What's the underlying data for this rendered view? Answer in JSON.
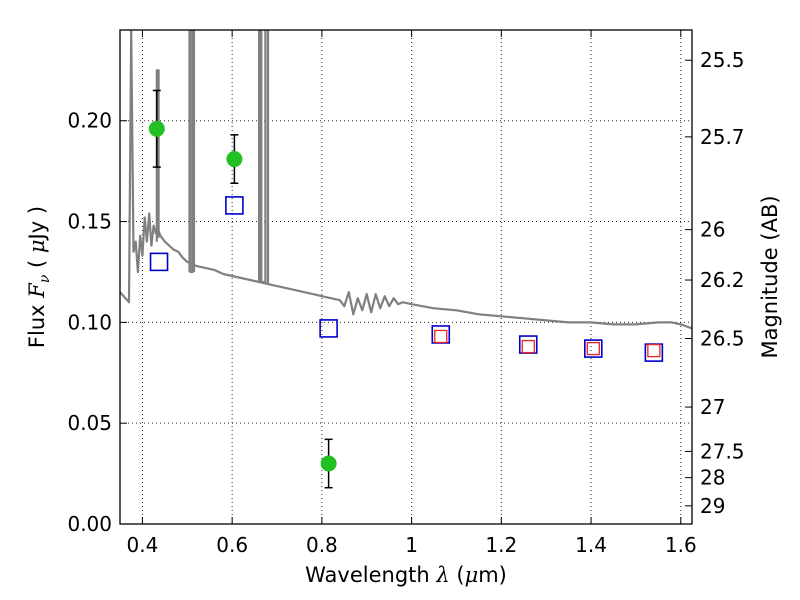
{
  "chart_data": {
    "type": "scatter",
    "title": "",
    "xlabel_parts": [
      "Wavelength  ",
      "λ",
      " (",
      "μ",
      "m)"
    ],
    "ylabel_parts": [
      "Flux  ",
      "F",
      "ν",
      "  ( ",
      "μ",
      "Jy )"
    ],
    "y2label": "Magnitude (AB)",
    "xlim": [
      0.35,
      1.625
    ],
    "ylim": [
      0.0,
      0.245
    ],
    "x_ticks": [
      0.4,
      0.6,
      0.8,
      1.0,
      1.2,
      1.4,
      1.6
    ],
    "x_tick_labels": [
      "0.4",
      "0.6",
      "0.8",
      "1",
      "1.2",
      "1.4",
      "1.6"
    ],
    "y_ticks": [
      0.0,
      0.05,
      0.1,
      0.15,
      0.2
    ],
    "y_tick_labels": [
      "0.00",
      "0.05",
      "0.10",
      "0.15",
      "0.20"
    ],
    "y2_ticks": [
      {
        "label": "25.5",
        "flux": 0.23
      },
      {
        "label": "25.7",
        "flux": 0.192
      },
      {
        "label": "26",
        "flux": 0.146
      },
      {
        "label": "26.2",
        "flux": 0.121
      },
      {
        "label": "26.5",
        "flux": 0.092
      },
      {
        "label": "27",
        "flux": 0.058
      },
      {
        "label": "27.5",
        "flux": 0.036
      },
      {
        "label": "28",
        "flux": 0.023
      },
      {
        "label": "29",
        "flux": 0.009
      }
    ],
    "grid": true,
    "series": [
      {
        "type": "line",
        "color": "#808080",
        "x": [
          0.35,
          0.37,
          0.375,
          0.38,
          0.385,
          0.39,
          0.395,
          0.4,
          0.405,
          0.41,
          0.415,
          0.42,
          0.425,
          0.43,
          0.435,
          0.44,
          0.45,
          0.46,
          0.47,
          0.48,
          0.49,
          0.5,
          0.52,
          0.54,
          0.56,
          0.58,
          0.6,
          0.62,
          0.64,
          0.66,
          0.68,
          0.7,
          0.72,
          0.74,
          0.76,
          0.78,
          0.8,
          0.82,
          0.84,
          0.85,
          0.86,
          0.87,
          0.88,
          0.89,
          0.9,
          0.91,
          0.92,
          0.93,
          0.94,
          0.95,
          0.96,
          0.97,
          0.98,
          1.0,
          1.05,
          1.1,
          1.15,
          1.2,
          1.25,
          1.3,
          1.35,
          1.4,
          1.45,
          1.5,
          1.55,
          1.58,
          1.6,
          1.625
        ],
        "y": [
          0.115,
          0.11,
          0.245,
          0.135,
          0.14,
          0.125,
          0.143,
          0.133,
          0.152,
          0.14,
          0.154,
          0.138,
          0.148,
          0.144,
          0.146,
          0.143,
          0.14,
          0.138,
          0.136,
          0.135,
          0.132,
          0.13,
          0.128,
          0.127,
          0.126,
          0.124,
          0.123,
          0.122,
          0.121,
          0.12,
          0.119,
          0.118,
          0.117,
          0.116,
          0.115,
          0.114,
          0.113,
          0.112,
          0.111,
          0.108,
          0.115,
          0.104,
          0.112,
          0.106,
          0.114,
          0.105,
          0.114,
          0.107,
          0.113,
          0.108,
          0.112,
          0.109,
          0.11,
          0.109,
          0.107,
          0.106,
          0.104,
          0.103,
          0.102,
          0.101,
          0.1,
          0.1,
          0.099,
          0.099,
          0.1,
          0.1,
          0.099,
          0.097
        ]
      },
      {
        "type": "line",
        "color": "#808080",
        "x": [
          0.505,
          0.505,
          0.507,
          0.507,
          0.512,
          0.512,
          0.515,
          0.515
        ],
        "y": [
          0.125,
          0.245,
          0.245,
          0.125,
          0.125,
          0.245,
          0.245,
          0.125
        ]
      },
      {
        "type": "line",
        "color": "#808080",
        "x": [
          0.432,
          0.432,
          0.436,
          0.436
        ],
        "y": [
          0.14,
          0.225,
          0.225,
          0.142
        ]
      },
      {
        "type": "line",
        "color": "#808080",
        "x": [
          0.66,
          0.66,
          0.665,
          0.665,
          0.674,
          0.674,
          0.68,
          0.68
        ],
        "y": [
          0.12,
          0.245,
          0.245,
          0.12,
          0.12,
          0.245,
          0.245,
          0.119
        ]
      },
      {
        "type": "scatter",
        "marker": "circle",
        "color": "#22c022",
        "x": [
          0.432,
          0.605,
          0.815
        ],
        "y": [
          0.196,
          0.181,
          0.03
        ],
        "yerr": [
          0.019,
          0.012,
          0.012
        ]
      },
      {
        "type": "scatter",
        "marker": "open-square",
        "color": "#0000cc",
        "x": [
          0.437,
          0.605,
          0.815,
          1.065,
          1.26,
          1.405,
          1.54
        ],
        "y": [
          0.13,
          0.158,
          0.097,
          0.094,
          0.089,
          0.087,
          0.085
        ]
      },
      {
        "type": "scatter",
        "marker": "open-square-small",
        "color": "#ee2222",
        "x": [
          1.065,
          1.26,
          1.405,
          1.54
        ],
        "y": [
          0.093,
          0.088,
          0.087,
          0.086
        ]
      }
    ]
  }
}
